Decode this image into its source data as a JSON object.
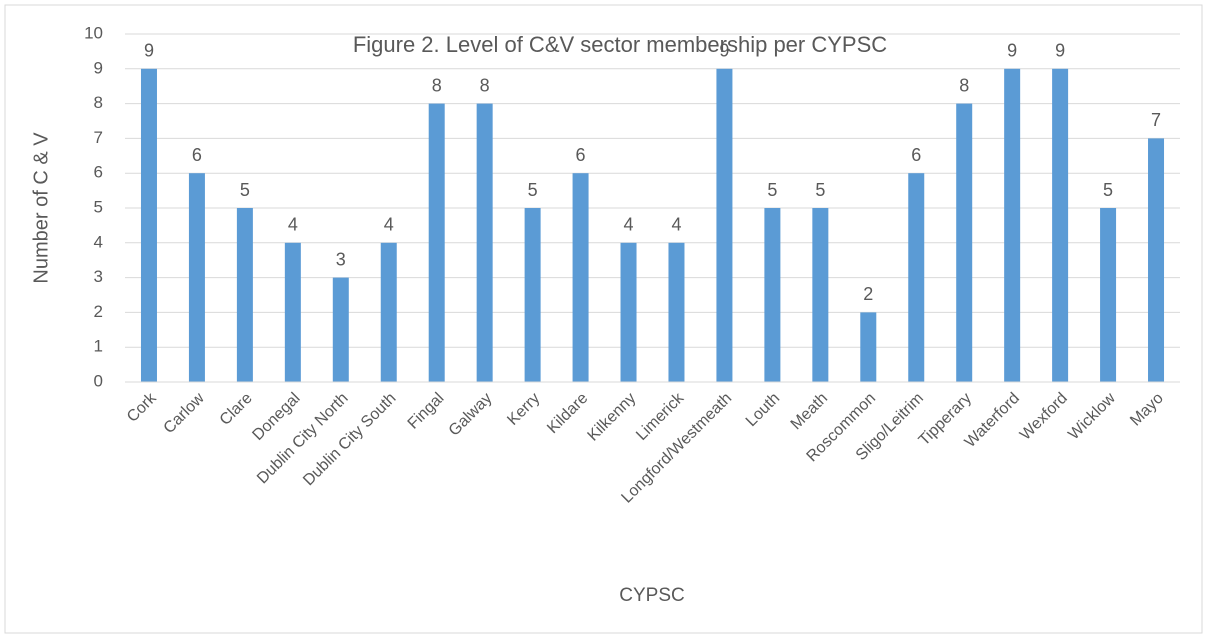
{
  "chart_data": {
    "type": "bar",
    "title": "Figure 2. Level of C&V sector membership per CYPSC",
    "y_label": "Number of C & V",
    "x_label": "CYPSC",
    "categories": [
      "Cork",
      "Carlow",
      "Clare",
      "Donegal",
      "Dublin City North",
      "Dublin City South",
      "Fingal",
      "Galway",
      "Kerry",
      "Kildare",
      "Kilkenny",
      "Limerick",
      "Longford/Westmeath",
      "Louth",
      "Meath",
      "Roscommon",
      "Sligo/Leitrim",
      "Tipperary",
      "Waterford",
      "Wexford",
      "Wicklow",
      "Mayo"
    ],
    "values": [
      9,
      6,
      5,
      4,
      3,
      4,
      8,
      8,
      5,
      6,
      4,
      4,
      9,
      5,
      5,
      2,
      6,
      8,
      9,
      9,
      5,
      7
    ],
    "color": "#5b9bd5",
    "ylim": [
      0,
      10
    ],
    "yticks": [
      0,
      1,
      2,
      3,
      4,
      5,
      6,
      7,
      8,
      9,
      10
    ],
    "grid": true
  }
}
